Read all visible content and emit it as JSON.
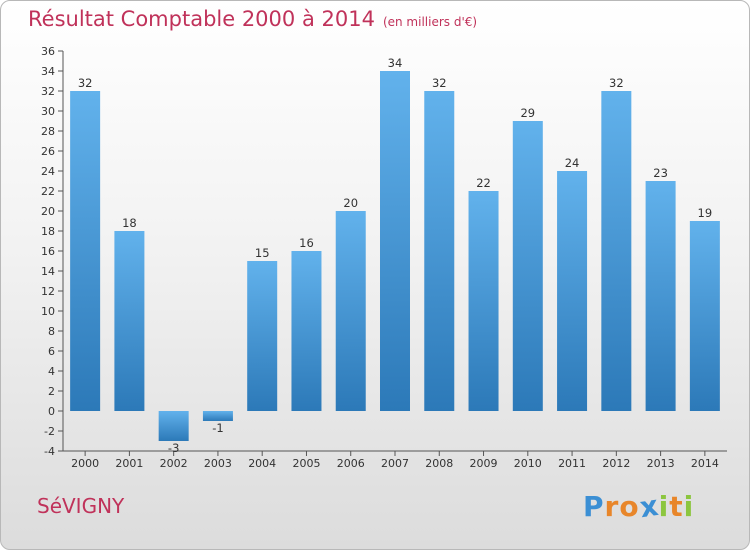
{
  "title": "Résultat Comptable 2000 à 2014",
  "subtitle": "(en milliers d'€)",
  "town": "SéVIGNY",
  "logo": {
    "text": "Proxiti",
    "letters": [
      {
        "ch": "P",
        "color": "#3b8fd4"
      },
      {
        "ch": "r",
        "color": "#e8862a"
      },
      {
        "ch": "o",
        "color": "#e8862a"
      },
      {
        "ch": "x",
        "color": "#3b8fd4"
      },
      {
        "ch": "i",
        "color": "#8cc63f"
      },
      {
        "ch": "t",
        "color": "#e8862a"
      },
      {
        "ch": "i",
        "color": "#8cc63f"
      }
    ]
  },
  "colors": {
    "title": "#c0325a",
    "bar_light": "#62b2ec",
    "bar_dark": "#2c79b8"
  },
  "chart_data": {
    "type": "bar",
    "title": "Résultat Comptable 2000 à 2014",
    "subtitle": "(en milliers d'€)",
    "xlabel": "",
    "ylabel": "",
    "categories": [
      "2000",
      "2001",
      "2002",
      "2003",
      "2004",
      "2005",
      "2006",
      "2007",
      "2008",
      "2009",
      "2010",
      "2011",
      "2012",
      "2013",
      "2014"
    ],
    "values": [
      32,
      18,
      -3,
      -1,
      15,
      16,
      20,
      34,
      32,
      22,
      29,
      24,
      32,
      23,
      19
    ],
    "ylim": [
      -4,
      36
    ],
    "ytick_step": 2,
    "grid": false
  }
}
